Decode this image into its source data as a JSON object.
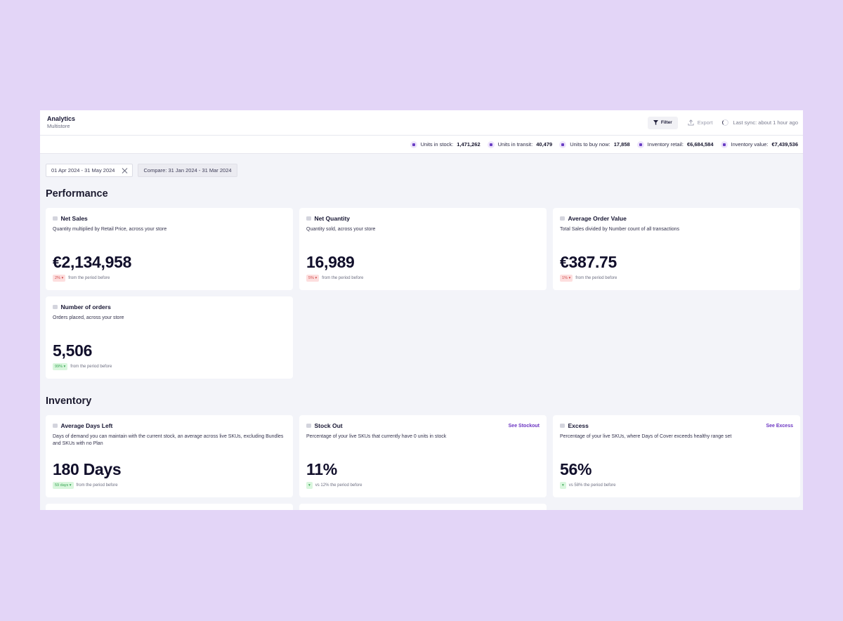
{
  "header": {
    "title": "Analytics",
    "subtitle": "Multistore",
    "filter_label": "Filter",
    "export_label": "Export",
    "sync_text": "Last sync: about 1 hour ago"
  },
  "stats": [
    {
      "label": "Units in stock:",
      "value": "1,471,262",
      "icon": "box-icon"
    },
    {
      "label": "Units in transit:",
      "value": "40,479",
      "icon": "truck-icon"
    },
    {
      "label": "Units to buy now:",
      "value": "17,858",
      "icon": "cart-icon"
    },
    {
      "label": "Inventory retail:",
      "value": "€6,684,584",
      "icon": "tag-icon"
    },
    {
      "label": "Inventory value:",
      "value": "€7,439,536",
      "icon": "coins-icon"
    }
  ],
  "date_range": "01 Apr 2024 - 31 May 2024",
  "compare_range": "Compare: 31 Jan 2024 - 31 Mar 2024",
  "sections": {
    "performance": "Performance",
    "inventory": "Inventory"
  },
  "performance_cards": [
    {
      "title": "Net Sales",
      "desc": "Quantity multiplied by Retail Price, across your store",
      "value": "€2,134,958",
      "badge": "2% ▾",
      "badge_color": "#fddede",
      "delta_text": "from the period before"
    },
    {
      "title": "Net Quantity",
      "desc": "Quantity sold, across your store",
      "value": "16,989",
      "badge": "5% ▾",
      "badge_color": "#fddede",
      "delta_text": "from the period before"
    },
    {
      "title": "Average Order Value",
      "desc": "Total Sales divided by Number count of all transactions",
      "value": "€387.75",
      "badge": "1% ▾",
      "badge_color": "#fddede",
      "delta_text": "from the period before"
    },
    {
      "title": "Number of orders",
      "desc": "Orders placed, across your store",
      "value": "5,506",
      "badge": "99% ▾",
      "badge_color": "#d9f6dd",
      "delta_text": "from the period before"
    }
  ],
  "inventory_cards": [
    {
      "title": "Average Days Left",
      "desc": "Days of demand you can maintain with the current stock, an average across live SKUs, excluding Bundles and SKUs with no Plan",
      "value": "180 Days",
      "badge": "59 days ▾",
      "badge_color": "#d9f6dd",
      "delta_text": "from the period before",
      "link": ""
    },
    {
      "title": "Stock Out",
      "desc": "Percentage of your live SKUs that currently have 0 units in stock",
      "value": "11%",
      "badge": "▾",
      "badge_color": "#d9f6dd",
      "delta_text": "vs 12% the period before",
      "link": "See Stockout"
    },
    {
      "title": "Excess",
      "desc": "Percentage of your live SKUs, where Days of Cover exceeds healthy range set",
      "value": "56%",
      "badge": "▾",
      "badge_color": "#d9f6dd",
      "delta_text": "vs 58% the period before",
      "link": "See Excess"
    }
  ],
  "colors": {
    "background": "#e3d5f7",
    "accent": "#6b34c2",
    "negative": "#d04e4e",
    "positive": "#3aa655"
  }
}
